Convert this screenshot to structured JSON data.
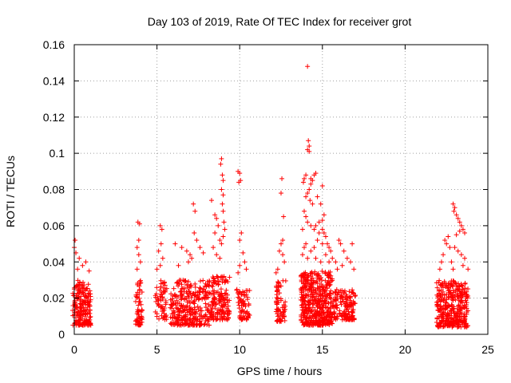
{
  "chart_data": {
    "type": "scatter",
    "title": "Day 103 of 2019, Rate Of TEC Index for receiver grot",
    "xlabel": "GPS time / hours",
    "ylabel": "ROTI / TECUs",
    "xlim": [
      0,
      25
    ],
    "ylim": [
      0,
      0.16
    ],
    "xticks": [
      0,
      5,
      10,
      15,
      20,
      25
    ],
    "xtick_labels": [
      "0",
      "5",
      "10",
      "15",
      "20",
      "25"
    ],
    "yticks": [
      0,
      0.02,
      0.04,
      0.06,
      0.08,
      0.1,
      0.12,
      0.14,
      0.16
    ],
    "ytick_labels": [
      "0",
      "0.02",
      "0.04",
      "0.06",
      "0.08",
      "0.1",
      "0.12",
      "0.14",
      "0.16"
    ],
    "grid": true,
    "marker": "plus",
    "marker_color": "#ff0000",
    "clusters": [
      {
        "x_range": [
          -0.1,
          1.0
        ],
        "y_range": [
          0.005,
          0.03
        ],
        "count": 200
      },
      {
        "x_range": [
          3.7,
          4.1
        ],
        "y_range": [
          0.005,
          0.03
        ],
        "count": 60
      },
      {
        "x_range": [
          4.9,
          5.6
        ],
        "y_range": [
          0.008,
          0.03
        ],
        "count": 60
      },
      {
        "x_range": [
          5.8,
          8.2
        ],
        "y_range": [
          0.005,
          0.03
        ],
        "count": 300
      },
      {
        "x_range": [
          8.2,
          9.4
        ],
        "y_range": [
          0.008,
          0.032
        ],
        "count": 150
      },
      {
        "x_range": [
          9.8,
          10.6
        ],
        "y_range": [
          0.008,
          0.025
        ],
        "count": 70
      },
      {
        "x_range": [
          12.2,
          12.8
        ],
        "y_range": [
          0.007,
          0.03
        ],
        "count": 70
      },
      {
        "x_range": [
          13.7,
          15.6
        ],
        "y_range": [
          0.005,
          0.035
        ],
        "count": 450
      },
      {
        "x_range": [
          15.6,
          17.0
        ],
        "y_range": [
          0.008,
          0.025
        ],
        "count": 150
      },
      {
        "x_range": [
          21.9,
          23.8
        ],
        "y_range": [
          0.004,
          0.03
        ],
        "count": 350
      }
    ],
    "points": [
      [
        0.05,
        0.052
      ],
      [
        0.0,
        0.048
      ],
      [
        0.1,
        0.045
      ],
      [
        0.3,
        0.042
      ],
      [
        0.5,
        0.038
      ],
      [
        0.7,
        0.04
      ],
      [
        0.9,
        0.035
      ],
      [
        0.2,
        0.036
      ],
      [
        3.85,
        0.062
      ],
      [
        3.95,
        0.061
      ],
      [
        3.9,
        0.052
      ],
      [
        3.8,
        0.048
      ],
      [
        3.9,
        0.044
      ],
      [
        4.0,
        0.04
      ],
      [
        3.8,
        0.036
      ],
      [
        5.2,
        0.06
      ],
      [
        5.3,
        0.058
      ],
      [
        5.25,
        0.05
      ],
      [
        5.1,
        0.046
      ],
      [
        5.35,
        0.042
      ],
      [
        5.2,
        0.038
      ],
      [
        5.0,
        0.036
      ],
      [
        6.1,
        0.05
      ],
      [
        6.5,
        0.048
      ],
      [
        6.8,
        0.046
      ],
      [
        7.0,
        0.044
      ],
      [
        7.2,
        0.072
      ],
      [
        7.3,
        0.068
      ],
      [
        7.25,
        0.056
      ],
      [
        7.4,
        0.052
      ],
      [
        7.6,
        0.048
      ],
      [
        7.8,
        0.045
      ],
      [
        7.1,
        0.042
      ],
      [
        6.9,
        0.04
      ],
      [
        6.3,
        0.038
      ],
      [
        8.3,
        0.074
      ],
      [
        8.5,
        0.066
      ],
      [
        8.6,
        0.064
      ],
      [
        8.7,
        0.06
      ],
      [
        8.5,
        0.056
      ],
      [
        8.8,
        0.052
      ],
      [
        8.4,
        0.048
      ],
      [
        8.6,
        0.044
      ],
      [
        8.9,
        0.097
      ],
      [
        8.85,
        0.094
      ],
      [
        8.95,
        0.088
      ],
      [
        9.0,
        0.085
      ],
      [
        8.9,
        0.08
      ],
      [
        9.0,
        0.077
      ],
      [
        8.95,
        0.072
      ],
      [
        9.0,
        0.068
      ],
      [
        9.05,
        0.062
      ],
      [
        9.1,
        0.058
      ],
      [
        9.0,
        0.054
      ],
      [
        8.9,
        0.05
      ],
      [
        8.8,
        0.042
      ],
      [
        9.9,
        0.09
      ],
      [
        10.0,
        0.089
      ],
      [
        10.05,
        0.085
      ],
      [
        9.95,
        0.084
      ],
      [
        10.1,
        0.056
      ],
      [
        10.0,
        0.052
      ],
      [
        10.2,
        0.045
      ],
      [
        10.3,
        0.04
      ],
      [
        10.4,
        0.036
      ],
      [
        10.0,
        0.038
      ],
      [
        9.9,
        0.034
      ],
      [
        12.55,
        0.086
      ],
      [
        12.5,
        0.078
      ],
      [
        12.65,
        0.065
      ],
      [
        12.6,
        0.052
      ],
      [
        12.5,
        0.05
      ],
      [
        12.4,
        0.046
      ],
      [
        12.6,
        0.044
      ],
      [
        12.7,
        0.04
      ],
      [
        12.3,
        0.036
      ],
      [
        12.2,
        0.034
      ],
      [
        14.1,
        0.148
      ],
      [
        14.15,
        0.107
      ],
      [
        14.2,
        0.104
      ],
      [
        14.1,
        0.102
      ],
      [
        14.2,
        0.101
      ],
      [
        14.0,
        0.088
      ],
      [
        13.9,
        0.086
      ],
      [
        13.85,
        0.084
      ],
      [
        14.3,
        0.086
      ],
      [
        14.5,
        0.088
      ],
      [
        14.6,
        0.089
      ],
      [
        14.4,
        0.085
      ],
      [
        14.3,
        0.083
      ],
      [
        14.2,
        0.08
      ],
      [
        14.1,
        0.078
      ],
      [
        14.0,
        0.076
      ],
      [
        14.25,
        0.074
      ],
      [
        14.4,
        0.072
      ],
      [
        14.7,
        0.076
      ],
      [
        14.9,
        0.072
      ],
      [
        15.0,
        0.082
      ],
      [
        15.1,
        0.066
      ],
      [
        15.0,
        0.063
      ],
      [
        14.8,
        0.062
      ],
      [
        14.6,
        0.06
      ],
      [
        14.5,
        0.058
      ],
      [
        14.3,
        0.06
      ],
      [
        13.9,
        0.068
      ],
      [
        14.0,
        0.065
      ],
      [
        14.1,
        0.062
      ],
      [
        13.8,
        0.058
      ],
      [
        14.8,
        0.056
      ],
      [
        15.0,
        0.058
      ],
      [
        15.1,
        0.056
      ],
      [
        15.2,
        0.054
      ],
      [
        15.3,
        0.05
      ],
      [
        15.4,
        0.048
      ],
      [
        15.5,
        0.046
      ],
      [
        15.0,
        0.05
      ],
      [
        14.7,
        0.052
      ],
      [
        14.5,
        0.048
      ],
      [
        14.3,
        0.046
      ],
      [
        14.0,
        0.05
      ],
      [
        13.9,
        0.048
      ],
      [
        13.8,
        0.044
      ],
      [
        14.1,
        0.042
      ],
      [
        14.6,
        0.042
      ],
      [
        15.2,
        0.044
      ],
      [
        15.6,
        0.042
      ],
      [
        15.8,
        0.04
      ],
      [
        15.4,
        0.04
      ],
      [
        14.9,
        0.04
      ],
      [
        16.0,
        0.052
      ],
      [
        16.1,
        0.05
      ],
      [
        16.3,
        0.046
      ],
      [
        16.5,
        0.042
      ],
      [
        16.8,
        0.05
      ],
      [
        16.7,
        0.04
      ],
      [
        16.2,
        0.038
      ],
      [
        16.9,
        0.036
      ],
      [
        15.9,
        0.036
      ],
      [
        22.9,
        0.072
      ],
      [
        23.0,
        0.07
      ],
      [
        22.95,
        0.068
      ],
      [
        23.1,
        0.066
      ],
      [
        23.2,
        0.064
      ],
      [
        23.3,
        0.062
      ],
      [
        23.4,
        0.06
      ],
      [
        23.5,
        0.058
      ],
      [
        23.6,
        0.056
      ],
      [
        23.3,
        0.057
      ],
      [
        23.1,
        0.055
      ],
      [
        22.6,
        0.054
      ],
      [
        22.4,
        0.052
      ],
      [
        22.5,
        0.05
      ],
      [
        22.7,
        0.048
      ],
      [
        23.0,
        0.048
      ],
      [
        23.2,
        0.046
      ],
      [
        23.4,
        0.044
      ],
      [
        23.6,
        0.042
      ],
      [
        22.3,
        0.044
      ],
      [
        22.2,
        0.04
      ],
      [
        22.8,
        0.04
      ],
      [
        23.5,
        0.038
      ],
      [
        23.8,
        0.036
      ],
      [
        22.1,
        0.036
      ],
      [
        22.9,
        0.036
      ]
    ]
  }
}
